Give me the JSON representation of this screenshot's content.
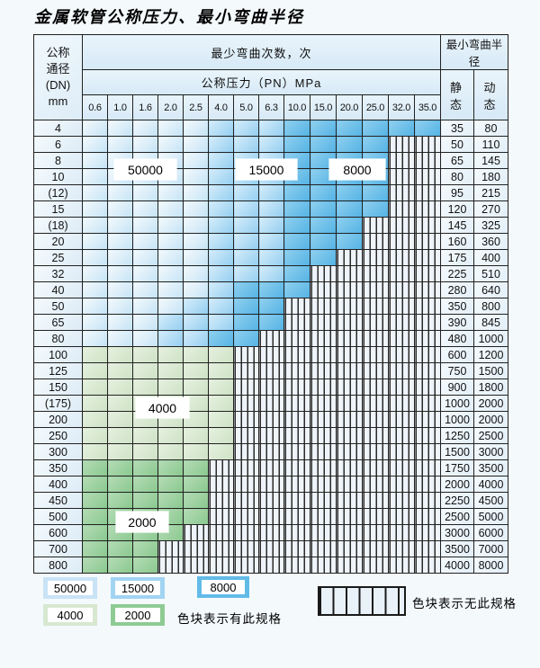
{
  "title": "金属软管公称压力、最小弯曲半径",
  "table": {
    "corner_lines": [
      "公称",
      "通径",
      "(DN)",
      "mm"
    ],
    "bend_cycles_header": "最少弯曲次数，次",
    "pressure_header": "公称压力（PN）MPa",
    "radius_header": "最小弯曲半径",
    "static_label": "静 态",
    "dynamic_label": "动 态",
    "pressure_columns": [
      "0.6",
      "1.0",
      "1.6",
      "2.0",
      "2.5",
      "4.0",
      "5.0",
      "6.3",
      "10.0",
      "15.0",
      "20.0",
      "25.0",
      "32.0",
      "35.0"
    ],
    "rows": [
      {
        "dn": "4",
        "cells": "LLLLLMMMDDDDDD",
        "static": "35",
        "dynamic": "80"
      },
      {
        "dn": "6",
        "cells": "LLLLLMMMDDDDHH",
        "static": "50",
        "dynamic": "110"
      },
      {
        "dn": "8",
        "cells": "LLLLLMMMDDDDHH",
        "static": "65",
        "dynamic": "145"
      },
      {
        "dn": "10",
        "cells": "LLLLLMMMDDDDHH",
        "static": "80",
        "dynamic": "180"
      },
      {
        "dn": "(12)",
        "cells": "LLLLLMMMDDDDHH",
        "static": "95",
        "dynamic": "215"
      },
      {
        "dn": "15",
        "cells": "LLLLLMMMDDDDHH",
        "static": "120",
        "dynamic": "270"
      },
      {
        "dn": "(18)",
        "cells": "LLLLLMMMDDDHHH",
        "static": "145",
        "dynamic": "325"
      },
      {
        "dn": "20",
        "cells": "LLLLLMMMDDDHHH",
        "static": "160",
        "dynamic": "360"
      },
      {
        "dn": "25",
        "cells": "LLLLLMMMDDHHHH",
        "static": "175",
        "dynamic": "400"
      },
      {
        "dn": "32",
        "cells": "LLLLLMMMDHHHHH",
        "static": "225",
        "dynamic": "510"
      },
      {
        "dn": "40",
        "cells": "LLLLLMDDDHHHHH",
        "static": "280",
        "dynamic": "640"
      },
      {
        "dn": "50",
        "cells": "LLLLMMDDHHHHHH",
        "static": "350",
        "dynamic": "800"
      },
      {
        "dn": "65",
        "cells": "LLLMMMDDHHHHHH",
        "static": "390",
        "dynamic": "845"
      },
      {
        "dn": "80",
        "cells": "LLLMMDDHHHHHHH",
        "static": "480",
        "dynamic": "1000"
      },
      {
        "dn": "100",
        "cells": "ggggggHHHHHHHH",
        "static": "600",
        "dynamic": "1200"
      },
      {
        "dn": "125",
        "cells": "ggggggHHHHHHHH",
        "static": "750",
        "dynamic": "1500"
      },
      {
        "dn": "150",
        "cells": "ggggggHHHHHHHH",
        "static": "900",
        "dynamic": "1800"
      },
      {
        "dn": "(175)",
        "cells": "ggggggHHHHHHHH",
        "static": "1000",
        "dynamic": "2000"
      },
      {
        "dn": "200",
        "cells": "ggggggHHHHHHHH",
        "static": "1000",
        "dynamic": "2000"
      },
      {
        "dn": "250",
        "cells": "ggggggHHHHHHHH",
        "static": "1250",
        "dynamic": "2500"
      },
      {
        "dn": "300",
        "cells": "ggggggHHHHHHHH",
        "static": "1500",
        "dynamic": "3000"
      },
      {
        "dn": "350",
        "cells": "GGGGGHHHHHHHHH",
        "static": "1750",
        "dynamic": "3500"
      },
      {
        "dn": "400",
        "cells": "GGGGGHHHHHHHHH",
        "static": "2000",
        "dynamic": "4000"
      },
      {
        "dn": "450",
        "cells": "GGGGGHHHHHHHHH",
        "static": "2250",
        "dynamic": "4500"
      },
      {
        "dn": "500",
        "cells": "GGGGGHHHHHHHHH",
        "static": "2500",
        "dynamic": "5000"
      },
      {
        "dn": "600",
        "cells": "GGGGHHHHHHHHHH",
        "static": "3000",
        "dynamic": "6000"
      },
      {
        "dn": "700",
        "cells": "GGGHHHHHHHHHHH",
        "static": "3500",
        "dynamic": "7000"
      },
      {
        "dn": "800",
        "cells": "GGGHHHHHHHHHHH",
        "static": "4000",
        "dynamic": "8000"
      }
    ]
  },
  "cell_codes": {
    "L": "50000",
    "M": "15000",
    "D": "8000",
    "g": "4000",
    "G": "2000",
    "H": "no-spec"
  },
  "colors": {
    "c50000": "#c9e3f6",
    "c15000": "#a2d4f1",
    "c8000": "#62bbe7",
    "c4000": "#d7e8d0",
    "c2000": "#8ecb93",
    "hatch_bg": "#eef4fa",
    "grid": "#222222",
    "page_bg": "#f4f9fc",
    "label_bg": "#ffffff"
  },
  "overlay_labels": [
    {
      "text": "50000"
    },
    {
      "text": "15000"
    },
    {
      "text": "8000"
    },
    {
      "text": "4000"
    },
    {
      "text": "2000"
    }
  ],
  "legend": {
    "swatches": [
      {
        "label": "50000"
      },
      {
        "label": "15000"
      },
      {
        "label": "8000"
      },
      {
        "label": "4000"
      },
      {
        "label": "2000"
      }
    ],
    "has_spec_text": "色块表示有此规格",
    "no_spec_text": "色块表示无此规格"
  }
}
